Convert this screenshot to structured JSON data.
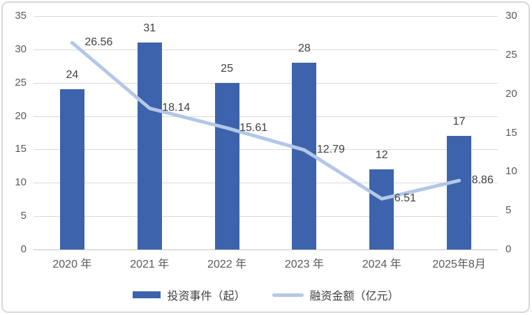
{
  "chart_data": {
    "type": "bar+line combo",
    "categories": [
      "2020 年",
      "2021 年",
      "2022 年",
      "2023 年",
      "2024 年",
      "2025年8月"
    ],
    "series": [
      {
        "name": "投资事件（起）",
        "type": "bar",
        "axis": "left",
        "color": "#3d63ac",
        "values": [
          24,
          31,
          25,
          28,
          12,
          17
        ]
      },
      {
        "name": "融资金额（亿元）",
        "type": "line",
        "axis": "right",
        "color": "#b3c7e7",
        "values": [
          26.56,
          18.14,
          15.61,
          12.79,
          6.51,
          8.86
        ]
      }
    ],
    "left_axis": {
      "min": 0,
      "max": 35,
      "step": 5,
      "ticks": [
        0,
        5,
        10,
        15,
        20,
        25,
        30,
        35
      ]
    },
    "right_axis": {
      "min": 0,
      "max": 30,
      "step": 5,
      "ticks": [
        0,
        5,
        10,
        15,
        20,
        25,
        30
      ]
    },
    "grid": true,
    "legend_position": "bottom",
    "title": "",
    "xlabel": "",
    "ylabel": ""
  },
  "colors": {
    "bar": "#3d63ac",
    "line": "#b3c7e7",
    "gridline": "#d9d9d9",
    "axis_text": "#595959",
    "data_label_text": "#404040",
    "frame_border": "#d8d8d8"
  }
}
